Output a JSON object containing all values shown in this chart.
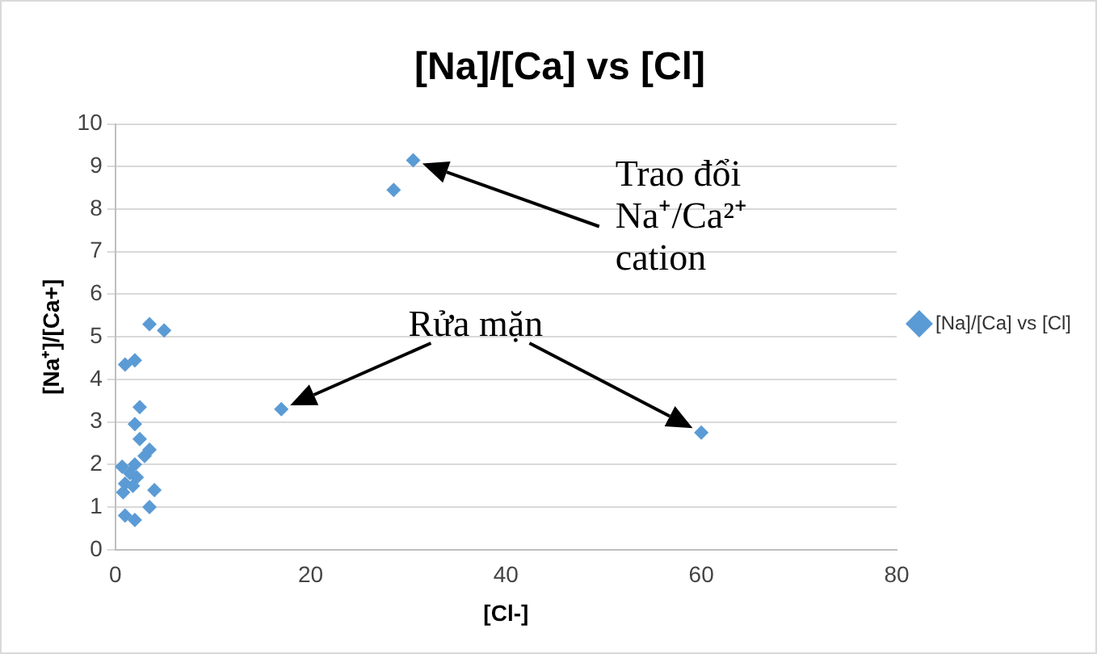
{
  "chart_data": {
    "type": "scatter",
    "title": "[Na]/[Ca] vs [Cl]",
    "xlabel": "[Cl-]",
    "ylabel": "[Na⁺]/[Ca+]",
    "series": [
      {
        "name": "[Na]/[Ca] vs [Cl]",
        "color": "#5b9bd5",
        "x": [
          30.5,
          28.5,
          17,
          60,
          3.5,
          5,
          1,
          2,
          2.5,
          2,
          2.5,
          3.5,
          3,
          2,
          0.7,
          1.5,
          2.2,
          1,
          1.8,
          0.8,
          4,
          3.5,
          1,
          2
        ],
        "values": [
          9.15,
          8.45,
          3.3,
          2.75,
          5.3,
          5.15,
          4.35,
          4.45,
          3.35,
          2.95,
          2.6,
          2.35,
          2.2,
          2.0,
          1.95,
          1.8,
          1.7,
          1.55,
          1.5,
          1.35,
          1.4,
          1.0,
          0.8,
          0.7
        ]
      }
    ],
    "xlim": [
      0,
      80
    ],
    "xticks": [
      0,
      20,
      40,
      60,
      80
    ],
    "ylim": [
      0,
      10
    ],
    "yticks": [
      0,
      1,
      2,
      3,
      4,
      5,
      6,
      7,
      8,
      9,
      10
    ],
    "grid": "y",
    "legend": "right",
    "marker": "diamond",
    "annotations": [
      "Trao đổi Na⁺/Ca²⁺ cation",
      "Rửa mặn"
    ]
  }
}
